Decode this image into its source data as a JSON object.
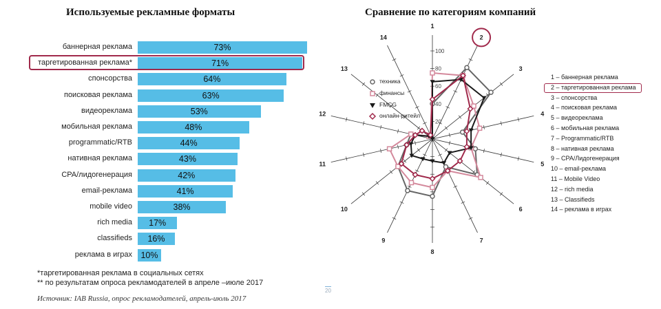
{
  "left_title": "Используемые рекламные форматы",
  "right_title": "Сравнение по категориям компаний",
  "notes": {
    "note1": "*таргетированная реклама в социальных сетях",
    "note2": "** по результатам опроса рекламодателей в апреле –июле 2017",
    "source": "Источник: IAB Russia, опрос рекламодателей, апрель-июль 2017",
    "page_number": "20"
  },
  "colors": {
    "bar": "#56bde6",
    "highlight": "#a0294b",
    "tech": "#666666",
    "finance": "#d4899c",
    "fmcg": "#1a1a1a",
    "online_retail": "#a0294b"
  },
  "chart_data": [
    {
      "type": "bar",
      "orientation": "horizontal",
      "title": "Используемые рекламные форматы",
      "categories": [
        "баннерная реклама",
        "таргетированная реклама*",
        "спонсорства",
        "поисковая реклама",
        "видеореклама",
        "мобильная реклама",
        "programmatic/RTB",
        "нативная реклама",
        "CPA/лидогенерация",
        "email-реклама",
        "mobile video",
        "rich media",
        "classifieds",
        "реклама в играх"
      ],
      "values": [
        73,
        71,
        64,
        63,
        53,
        48,
        44,
        43,
        42,
        41,
        38,
        17,
        16,
        10
      ],
      "value_labels": [
        "73%",
        "71%",
        "64%",
        "63%",
        "53%",
        "48%",
        "44%",
        "43%",
        "42%",
        "41%",
        "38%",
        "17%",
        "16%",
        "10%"
      ],
      "unit": "%",
      "highlighted": "таргетированная реклама*"
    },
    {
      "type": "radar",
      "title": "Сравнение по категориям компаний",
      "axes": [
        "1",
        "2",
        "3",
        "4",
        "5",
        "6",
        "7",
        "8",
        "9",
        "10",
        "11",
        "12",
        "13",
        "14"
      ],
      "axis_names": [
        "1 – баннерная реклама",
        "2 – таргетированная реклама",
        "3 – спонсорства",
        "4 – поисковая реклама",
        "5 – видеореклама",
        "6 – мобильная реклама",
        "7 – Programmatic/RTB",
        "8 – нативная реклама",
        "9 – CPA/Лидогенерация",
        "10 – email-реклама",
        "11 – Mobile Video",
        "12 – rich media",
        "13 – Classifieds",
        "14 – реклама в играх"
      ],
      "scale_ticks": [
        "20",
        "40",
        "60",
        "80",
        "100"
      ],
      "range": [
        0,
        100
      ],
      "highlighted_axis": "2",
      "series": [
        {
          "name": "техника",
          "values": [
            40,
            90,
            85,
            35,
            50,
            65,
            35,
            65,
            65,
            50,
            30,
            25,
            5,
            0
          ]
        },
        {
          "name": "финансы",
          "values": [
            75,
            80,
            60,
            55,
            45,
            70,
            40,
            55,
            55,
            50,
            50,
            25,
            5,
            5
          ]
        },
        {
          "name": "FMCG",
          "values": [
            65,
            75,
            75,
            45,
            45,
            25,
            30,
            25,
            25,
            30,
            25,
            20,
            5,
            0
          ]
        },
        {
          "name": "онлайн-ритейл",
          "values": [
            45,
            80,
            55,
            40,
            40,
            40,
            40,
            45,
            45,
            45,
            30,
            20,
            15,
            5
          ]
        }
      ]
    }
  ]
}
